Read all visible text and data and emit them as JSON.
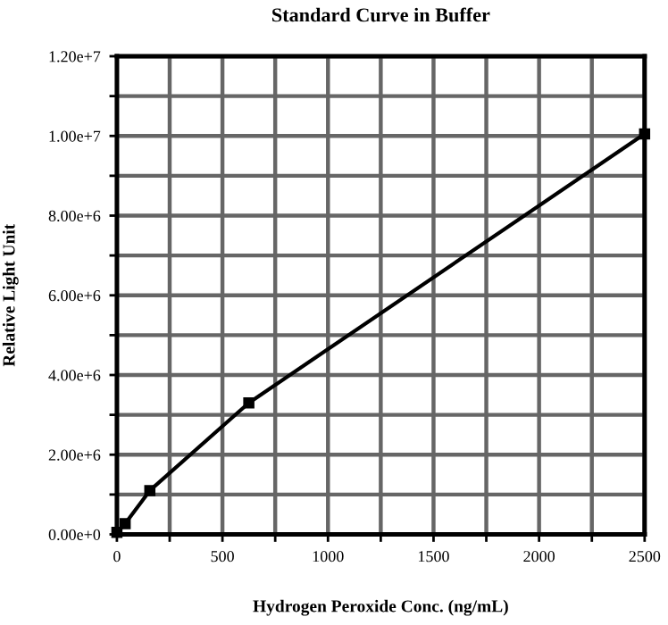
{
  "chart_data": {
    "type": "line",
    "title": "Standard Curve in Buffer",
    "xlabel": "Hydrogen Peroxide Conc. (ng/mL)",
    "ylabel": "Relative Light Unit",
    "series": [
      {
        "color": "#000000",
        "x": [
          0,
          39,
          156,
          625,
          2500
        ],
        "values": [
          50000,
          270000,
          1100000,
          3300000,
          10050000
        ]
      }
    ],
    "xlim": [
      0,
      2500
    ],
    "ylim": [
      0,
      12000000
    ],
    "xticks": [
      0,
      {
        "value": 250,
        "label": null
      },
      500,
      {
        "value": 750,
        "label": null
      },
      1000,
      {
        "value": 1250,
        "label": null
      },
      1500,
      {
        "value": 1750,
        "label": null
      },
      2000,
      {
        "value": 2250,
        "label": null
      },
      2500
    ],
    "yticks": [
      {
        "value": 0,
        "label": "0.00e+0"
      },
      {
        "value": 1000000,
        "label": null
      },
      {
        "value": 2000000,
        "label": "2.00e+6"
      },
      {
        "value": 3000000,
        "label": null
      },
      {
        "value": 4000000,
        "label": "4.00e+6"
      },
      {
        "value": 5000000,
        "label": null
      },
      {
        "value": 6000000,
        "label": "6.00e+6"
      },
      {
        "value": 7000000,
        "label": null
      },
      {
        "value": 8000000,
        "label": "8.00e+6"
      },
      {
        "value": 9000000,
        "label": null
      },
      {
        "value": 10000000,
        "label": "1.00e+7"
      },
      {
        "value": 11000000,
        "label": null
      },
      {
        "value": 12000000,
        "label": "1.20e+7"
      }
    ],
    "grid": true,
    "marker": "square",
    "line_style": "solid"
  }
}
